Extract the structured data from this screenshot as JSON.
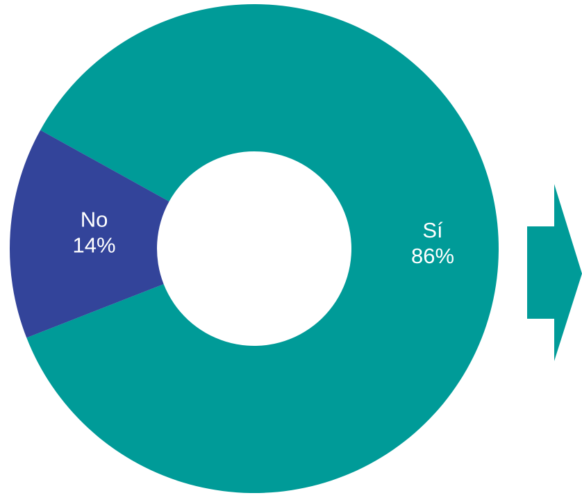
{
  "chart_data": {
    "type": "pie",
    "donut": true,
    "slices": [
      {
        "label": "Sí",
        "value": 86,
        "display": "86%",
        "color": "#009B98"
      },
      {
        "label": "No",
        "value": 14,
        "display": "14%",
        "color": "#33449A"
      }
    ],
    "legend": "none"
  },
  "arrow": {
    "color": "#009B98",
    "icon": "right-arrow-icon"
  }
}
